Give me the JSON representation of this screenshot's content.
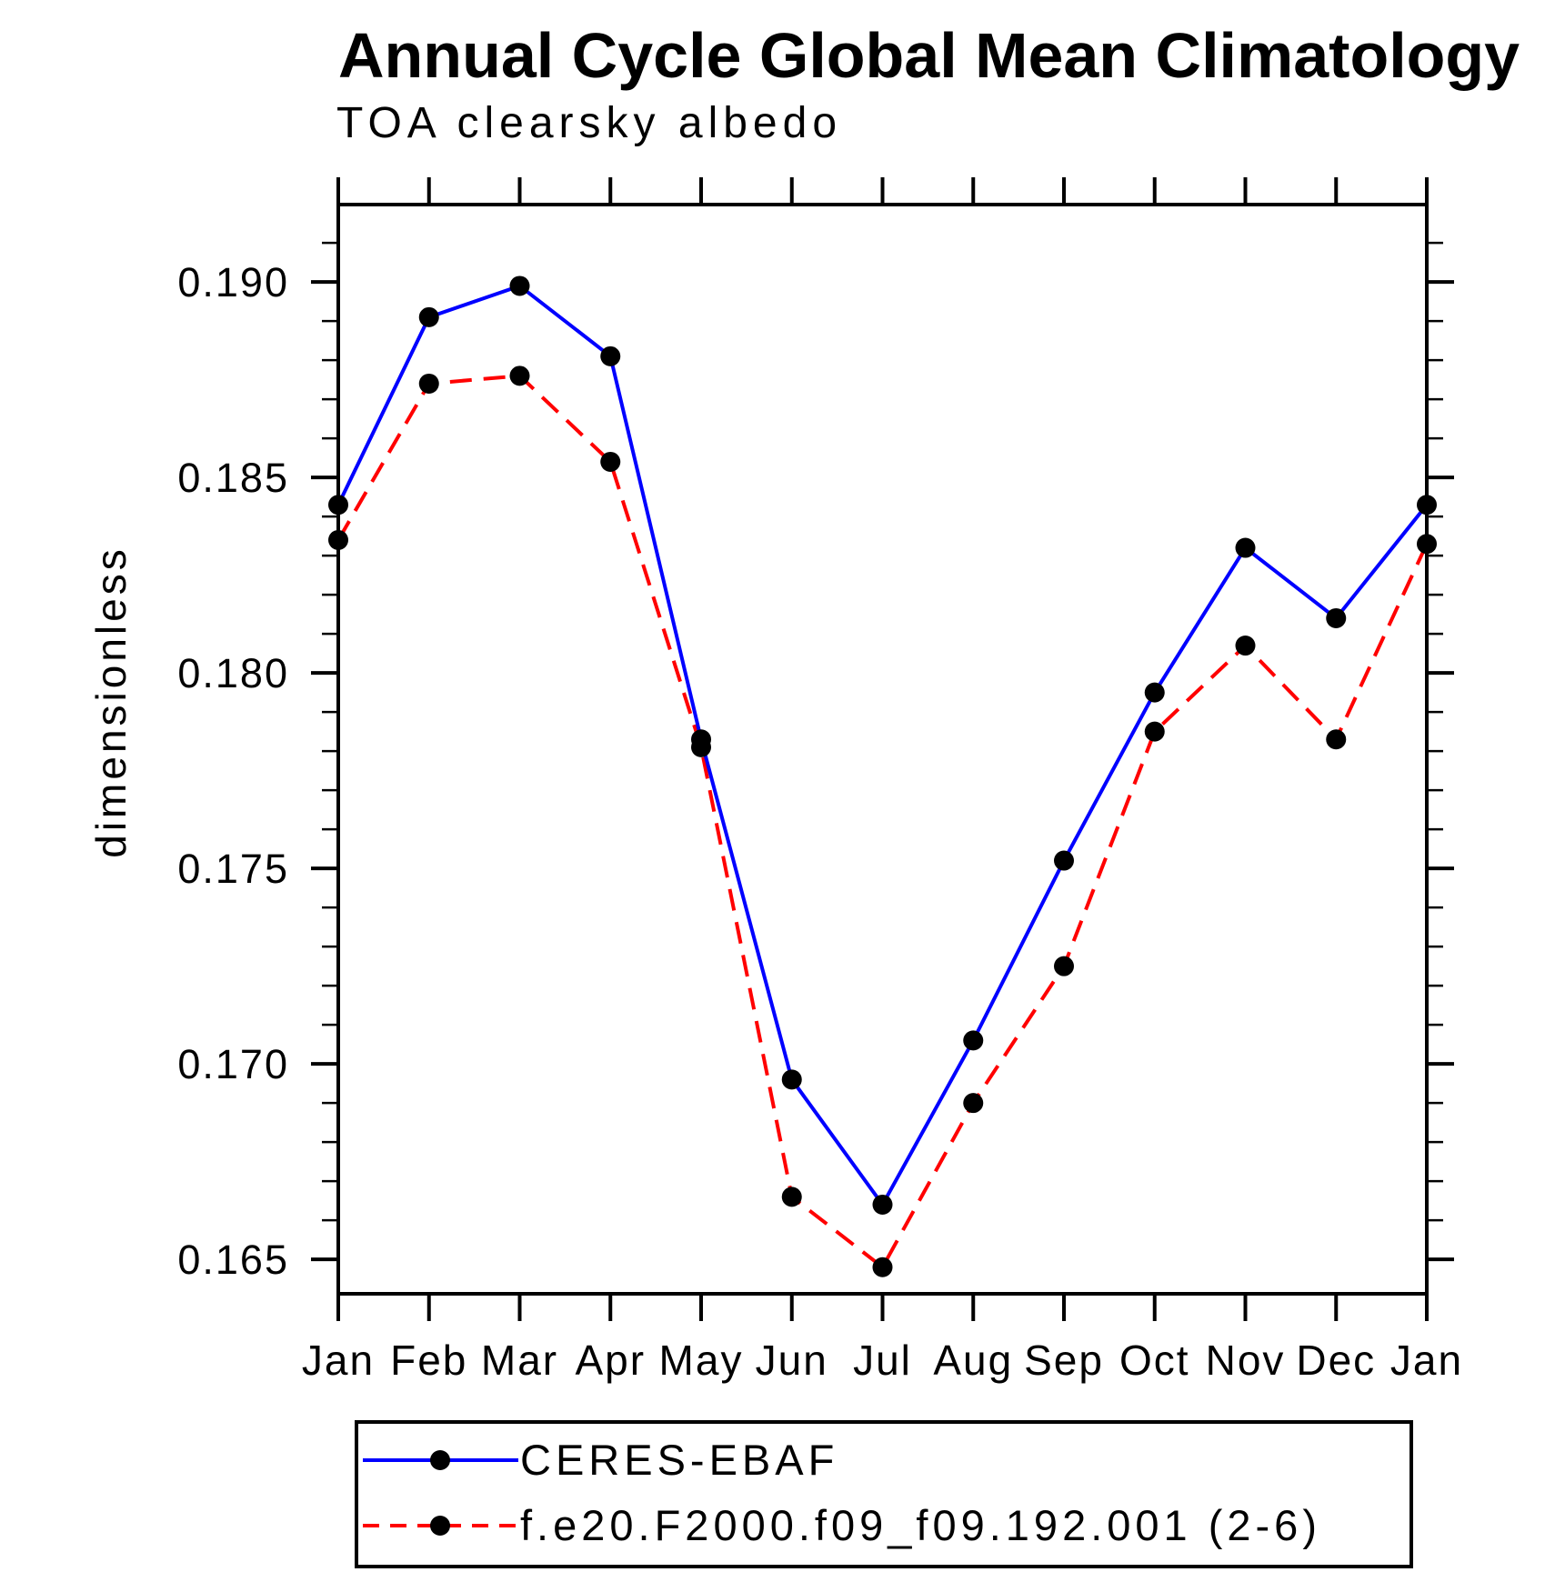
{
  "page_background": "#ffffff",
  "chart_data": {
    "type": "line",
    "title": "Annual Cycle Global Mean Climatology",
    "subtitle": "TOA clearsky albedo",
    "ylabel": "dimensionless",
    "xlabel": "",
    "categories": [
      "Jan",
      "Feb",
      "Mar",
      "Apr",
      "May",
      "Jun",
      "Jul",
      "Aug",
      "Sep",
      "Oct",
      "Nov",
      "Dec",
      "Jan"
    ],
    "series": [
      {
        "name": "CERES-EBAF",
        "color": "#0000ff",
        "line_style": "solid",
        "marker": "filled-circle",
        "marker_color": "#000000",
        "values": [
          0.1843,
          0.1891,
          0.1899,
          0.1881,
          0.1783,
          0.1696,
          0.1664,
          0.1706,
          0.1752,
          0.1795,
          0.1832,
          0.1814,
          0.1843
        ]
      },
      {
        "name": "f.e20.F2000.f09_f09.192.001 (2-6)",
        "color": "#ff0000",
        "line_style": "dashed",
        "marker": "filled-circle",
        "marker_color": "#000000",
        "values": [
          0.1834,
          0.1874,
          0.1876,
          0.1854,
          0.1781,
          0.1666,
          0.1648,
          0.169,
          0.1725,
          0.1785,
          0.1807,
          0.1783,
          0.1833
        ]
      }
    ],
    "y_ticks": [
      {
        "value": 0.19,
        "label": "0.190"
      },
      {
        "value": 0.185,
        "label": "0.185"
      },
      {
        "value": 0.18,
        "label": "0.180"
      },
      {
        "value": 0.175,
        "label": "0.175"
      },
      {
        "value": 0.17,
        "label": "0.170"
      },
      {
        "value": 0.165,
        "label": "0.165"
      }
    ],
    "y_minor_step": 0.001,
    "ylim": [
      0.16412,
      0.19198
    ],
    "grid": false,
    "legend_position": "bottom-left",
    "axis_color": "#000000"
  }
}
